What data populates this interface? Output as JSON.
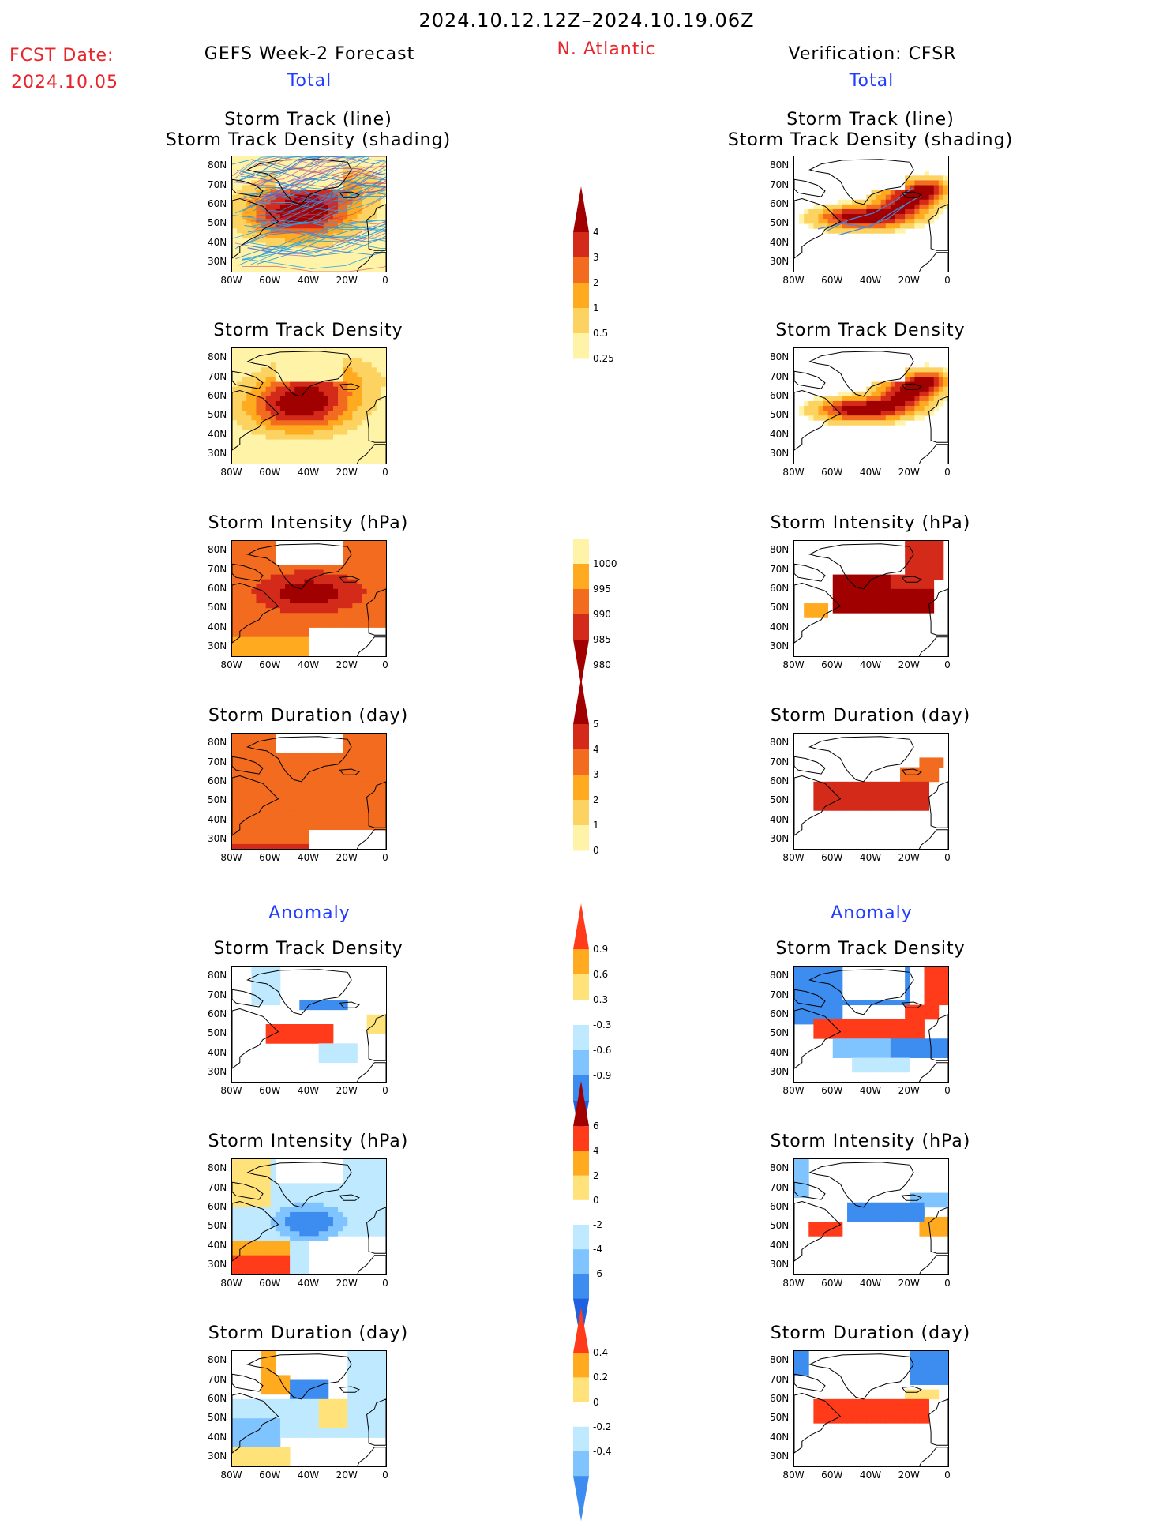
{
  "header": {
    "period": "2024.10.12.12Z–2024.10.19.06Z",
    "fcst_label": "FCST Date:",
    "fcst_date": "2024.10.05",
    "left_title": "GEFS Week-2 Forecast",
    "region": "N. Atlantic",
    "right_title": "Verification: CFSR",
    "total_left": "Total",
    "total_right": "Total",
    "anomaly_left": "Anomaly",
    "anomaly_right": "Anomaly"
  },
  "axes": {
    "lat_ticks": [
      "80N",
      "70N",
      "60N",
      "50N",
      "40N",
      "30N"
    ],
    "lon_ticks": [
      "80W",
      "60W",
      "40W",
      "20W",
      "0"
    ]
  },
  "panels": {
    "left": [
      {
        "title1": "Storm Track (line)",
        "title2": "Storm Track Density (shading)",
        "scheme": "density_tracks"
      },
      {
        "title1": "Storm Track Density",
        "scheme": "density"
      },
      {
        "title1": "Storm Intensity (hPa)",
        "scheme": "intensity"
      },
      {
        "title1": "Storm Duration (day)",
        "scheme": "duration"
      },
      {
        "title1": "Storm Track Density",
        "scheme": "anom_density"
      },
      {
        "title1": "Storm Intensity (hPa)",
        "scheme": "anom_intensity"
      },
      {
        "title1": "Storm Duration (day)",
        "scheme": "anom_duration"
      }
    ],
    "right": [
      {
        "title1": "Storm Track (line)",
        "title2": "Storm Track Density (shading)",
        "scheme": "v_density_tracks"
      },
      {
        "title1": "Storm Track Density",
        "scheme": "v_density"
      },
      {
        "title1": "Storm Intensity (hPa)",
        "scheme": "v_intensity"
      },
      {
        "title1": "Storm Duration (day)",
        "scheme": "v_duration"
      },
      {
        "title1": "Storm Track Density",
        "scheme": "v_anom_density"
      },
      {
        "title1": "Storm Intensity (hPa)",
        "scheme": "v_anom_intensity"
      },
      {
        "title1": "Storm Duration (day)",
        "scheme": "v_anom_duration"
      }
    ]
  },
  "colorbars": [
    {
      "name": "density",
      "labels": [
        "4",
        "3",
        "2",
        "1",
        "0.5",
        "0.25"
      ],
      "colors": [
        "#a00000",
        "#d42a1a",
        "#f26b1f",
        "#ffaa1f",
        "#fcd260",
        "#fff3a8"
      ],
      "ends": "top-triangle"
    },
    {
      "name": "intensity",
      "labels": [
        "1000",
        "995",
        "990",
        "985",
        "980"
      ],
      "colors": [
        "#fff3a8",
        "#ffaa1f",
        "#f26b1f",
        "#d42a1a",
        "#a00000"
      ],
      "ends": "bottom-triangle"
    },
    {
      "name": "duration",
      "labels": [
        "5",
        "4",
        "3",
        "2",
        "1",
        "0"
      ],
      "colors": [
        "#a00000",
        "#d42a1a",
        "#f26b1f",
        "#ffaa1f",
        "#fcd260",
        "#fff3a8"
      ],
      "ends": "top-triangle"
    },
    {
      "name": "anom_density",
      "labels": [
        "0.9",
        "0.6",
        "0.3",
        "-0.3",
        "-0.6",
        "-0.9"
      ],
      "colors": [
        "#ff3b1a",
        "#ffaa1f",
        "#ffe27a",
        "#ffffff",
        "#bfe9ff",
        "#7fc4ff",
        "#3d8df0",
        "#1f5fe0"
      ],
      "ends": "both"
    },
    {
      "name": "anom_intensity",
      "labels": [
        "6",
        "4",
        "2",
        "0",
        "-2",
        "-4",
        "-6"
      ],
      "colors": [
        "#a00000",
        "#ff3b1a",
        "#ffaa1f",
        "#ffe27a",
        "#ffffff",
        "#bfe9ff",
        "#7fc4ff",
        "#3d8df0",
        "#1f5fe0"
      ],
      "ends": "both"
    },
    {
      "name": "anom_duration",
      "labels": [
        "0.4",
        "0.2",
        "0",
        "-0.2",
        "-0.4"
      ],
      "colors": [
        "#ff3b1a",
        "#ffaa1f",
        "#ffe27a",
        "#ffffff",
        "#bfe9ff",
        "#7fc4ff",
        "#3d8df0"
      ],
      "ends": "both"
    }
  ]
}
